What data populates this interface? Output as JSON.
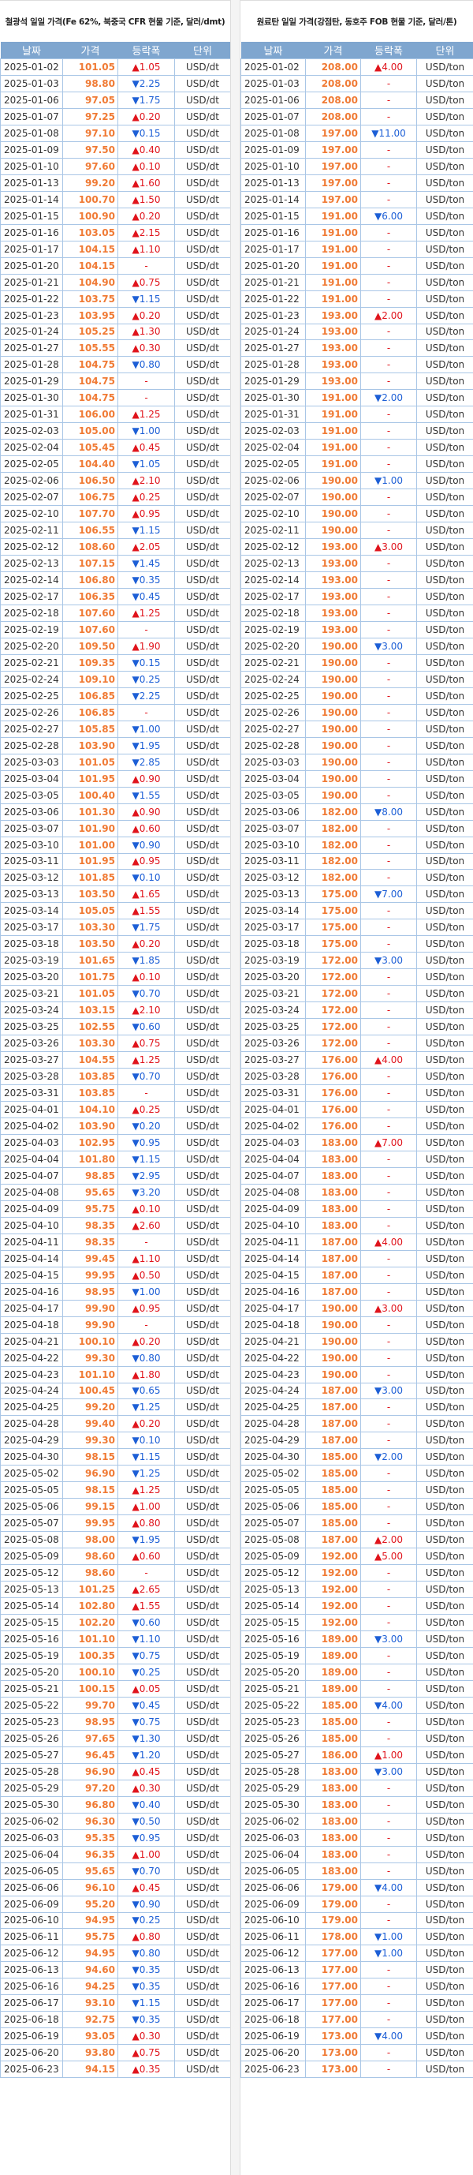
{
  "iron_ore": {
    "title": "철광석 일일 가격(Fe 62%, 북중국 CFR 현물 기준, 달러/dmt)",
    "headers": [
      "날짜",
      "가격",
      "등락폭",
      "단위"
    ],
    "unit": "USD/dt",
    "rows": [
      [
        "2025-01-02",
        "101.05",
        "▲1.05"
      ],
      [
        "2025-01-03",
        "98.80",
        "▼2.25"
      ],
      [
        "2025-01-06",
        "97.05",
        "▼1.75"
      ],
      [
        "2025-01-07",
        "97.25",
        "▲0.20"
      ],
      [
        "2025-01-08",
        "97.10",
        "▼0.15"
      ],
      [
        "2025-01-09",
        "97.50",
        "▲0.40"
      ],
      [
        "2025-01-10",
        "97.60",
        "▲0.10"
      ],
      [
        "2025-01-13",
        "99.20",
        "▲1.60"
      ],
      [
        "2025-01-14",
        "100.70",
        "▲1.50"
      ],
      [
        "2025-01-15",
        "100.90",
        "▲0.20"
      ],
      [
        "2025-01-16",
        "103.05",
        "▲2.15"
      ],
      [
        "2025-01-17",
        "104.15",
        "▲1.10"
      ],
      [
        "2025-01-20",
        "104.15",
        "-"
      ],
      [
        "2025-01-21",
        "104.90",
        "▲0.75"
      ],
      [
        "2025-01-22",
        "103.75",
        "▼1.15"
      ],
      [
        "2025-01-23",
        "103.95",
        "▲0.20"
      ],
      [
        "2025-01-24",
        "105.25",
        "▲1.30"
      ],
      [
        "2025-01-27",
        "105.55",
        "▲0.30"
      ],
      [
        "2025-01-28",
        "104.75",
        "▼0.80"
      ],
      [
        "2025-01-29",
        "104.75",
        "-"
      ],
      [
        "2025-01-30",
        "104.75",
        "-"
      ],
      [
        "2025-01-31",
        "106.00",
        "▲1.25"
      ],
      [
        "2025-02-03",
        "105.00",
        "▼1.00"
      ],
      [
        "2025-02-04",
        "105.45",
        "▲0.45"
      ],
      [
        "2025-02-05",
        "104.40",
        "▼1.05"
      ],
      [
        "2025-02-06",
        "106.50",
        "▲2.10"
      ],
      [
        "2025-02-07",
        "106.75",
        "▲0.25"
      ],
      [
        "2025-02-10",
        "107.70",
        "▲0.95"
      ],
      [
        "2025-02-11",
        "106.55",
        "▼1.15"
      ],
      [
        "2025-02-12",
        "108.60",
        "▲2.05"
      ],
      [
        "2025-02-13",
        "107.15",
        "▼1.45"
      ],
      [
        "2025-02-14",
        "106.80",
        "▼0.35"
      ],
      [
        "2025-02-17",
        "106.35",
        "▼0.45"
      ],
      [
        "2025-02-18",
        "107.60",
        "▲1.25"
      ],
      [
        "2025-02-19",
        "107.60",
        "-"
      ],
      [
        "2025-02-20",
        "109.50",
        "▲1.90"
      ],
      [
        "2025-02-21",
        "109.35",
        "▼0.15"
      ],
      [
        "2025-02-24",
        "109.10",
        "▼0.25"
      ],
      [
        "2025-02-25",
        "106.85",
        "▼2.25"
      ],
      [
        "2025-02-26",
        "106.85",
        "-"
      ],
      [
        "2025-02-27",
        "105.85",
        "▼1.00"
      ],
      [
        "2025-02-28",
        "103.90",
        "▼1.95"
      ],
      [
        "2025-03-03",
        "101.05",
        "▼2.85"
      ],
      [
        "2025-03-04",
        "101.95",
        "▲0.90"
      ],
      [
        "2025-03-05",
        "100.40",
        "▼1.55"
      ],
      [
        "2025-03-06",
        "101.30",
        "▲0.90"
      ],
      [
        "2025-03-07",
        "101.90",
        "▲0.60"
      ],
      [
        "2025-03-10",
        "101.00",
        "▼0.90"
      ],
      [
        "2025-03-11",
        "101.95",
        "▲0.95"
      ],
      [
        "2025-03-12",
        "101.85",
        "▼0.10"
      ],
      [
        "2025-03-13",
        "103.50",
        "▲1.65"
      ],
      [
        "2025-03-14",
        "105.05",
        "▲1.55"
      ],
      [
        "2025-03-17",
        "103.30",
        "▼1.75"
      ],
      [
        "2025-03-18",
        "103.50",
        "▲0.20"
      ],
      [
        "2025-03-19",
        "101.65",
        "▼1.85"
      ],
      [
        "2025-03-20",
        "101.75",
        "▲0.10"
      ],
      [
        "2025-03-21",
        "101.05",
        "▼0.70"
      ],
      [
        "2025-03-24",
        "103.15",
        "▲2.10"
      ],
      [
        "2025-03-25",
        "102.55",
        "▼0.60"
      ],
      [
        "2025-03-26",
        "103.30",
        "▲0.75"
      ],
      [
        "2025-03-27",
        "104.55",
        "▲1.25"
      ],
      [
        "2025-03-28",
        "103.85",
        "▼0.70"
      ],
      [
        "2025-03-31",
        "103.85",
        "-"
      ],
      [
        "2025-04-01",
        "104.10",
        "▲0.25"
      ],
      [
        "2025-04-02",
        "103.90",
        "▼0.20"
      ],
      [
        "2025-04-03",
        "102.95",
        "▼0.95"
      ],
      [
        "2025-04-04",
        "101.80",
        "▼1.15"
      ],
      [
        "2025-04-07",
        "98.85",
        "▼2.95"
      ],
      [
        "2025-04-08",
        "95.65",
        "▼3.20"
      ],
      [
        "2025-04-09",
        "95.75",
        "▲0.10"
      ],
      [
        "2025-04-10",
        "98.35",
        "▲2.60"
      ],
      [
        "2025-04-11",
        "98.35",
        "-"
      ],
      [
        "2025-04-14",
        "99.45",
        "▲1.10"
      ],
      [
        "2025-04-15",
        "99.95",
        "▲0.50"
      ],
      [
        "2025-04-16",
        "98.95",
        "▼1.00"
      ],
      [
        "2025-04-17",
        "99.90",
        "▲0.95"
      ],
      [
        "2025-04-18",
        "99.90",
        "-"
      ],
      [
        "2025-04-21",
        "100.10",
        "▲0.20"
      ],
      [
        "2025-04-22",
        "99.30",
        "▼0.80"
      ],
      [
        "2025-04-23",
        "101.10",
        "▲1.80"
      ],
      [
        "2025-04-24",
        "100.45",
        "▼0.65"
      ],
      [
        "2025-04-25",
        "99.20",
        "▼1.25"
      ],
      [
        "2025-04-28",
        "99.40",
        "▲0.20"
      ],
      [
        "2025-04-29",
        "99.30",
        "▼0.10"
      ],
      [
        "2025-04-30",
        "98.15",
        "▼1.15"
      ],
      [
        "2025-05-02",
        "96.90",
        "▼1.25"
      ],
      [
        "2025-05-05",
        "98.15",
        "▲1.25"
      ],
      [
        "2025-05-06",
        "99.15",
        "▲1.00"
      ],
      [
        "2025-05-07",
        "99.95",
        "▲0.80"
      ],
      [
        "2025-05-08",
        "98.00",
        "▼1.95"
      ],
      [
        "2025-05-09",
        "98.60",
        "▲0.60"
      ],
      [
        "2025-05-12",
        "98.60",
        "-"
      ],
      [
        "2025-05-13",
        "101.25",
        "▲2.65"
      ],
      [
        "2025-05-14",
        "102.80",
        "▲1.55"
      ],
      [
        "2025-05-15",
        "102.20",
        "▼0.60"
      ],
      [
        "2025-05-16",
        "101.10",
        "▼1.10"
      ],
      [
        "2025-05-19",
        "100.35",
        "▼0.75"
      ],
      [
        "2025-05-20",
        "100.10",
        "▼0.25"
      ],
      [
        "2025-05-21",
        "100.15",
        "▲0.05"
      ],
      [
        "2025-05-22",
        "99.70",
        "▼0.45"
      ],
      [
        "2025-05-23",
        "98.95",
        "▼0.75"
      ],
      [
        "2025-05-26",
        "97.65",
        "▼1.30"
      ],
      [
        "2025-05-27",
        "96.45",
        "▼1.20"
      ],
      [
        "2025-05-28",
        "96.90",
        "▲0.45"
      ],
      [
        "2025-05-29",
        "97.20",
        "▲0.30"
      ],
      [
        "2025-05-30",
        "96.80",
        "▼0.40"
      ],
      [
        "2025-06-02",
        "96.30",
        "▼0.50"
      ],
      [
        "2025-06-03",
        "95.35",
        "▼0.95"
      ],
      [
        "2025-06-04",
        "96.35",
        "▲1.00"
      ],
      [
        "2025-06-05",
        "95.65",
        "▼0.70"
      ],
      [
        "2025-06-06",
        "96.10",
        "▲0.45"
      ],
      [
        "2025-06-09",
        "95.20",
        "▼0.90"
      ],
      [
        "2025-06-10",
        "94.95",
        "▼0.25"
      ],
      [
        "2025-06-11",
        "95.75",
        "▲0.80"
      ],
      [
        "2025-06-12",
        "94.95",
        "▼0.80"
      ],
      [
        "2025-06-13",
        "94.60",
        "▼0.35"
      ],
      [
        "2025-06-16",
        "94.25",
        "▼0.35"
      ],
      [
        "2025-06-17",
        "93.10",
        "▼1.15"
      ],
      [
        "2025-06-18",
        "92.75",
        "▼0.35"
      ],
      [
        "2025-06-19",
        "93.05",
        "▲0.30"
      ],
      [
        "2025-06-20",
        "93.80",
        "▲0.75"
      ],
      [
        "2025-06-23",
        "94.15",
        "▲0.35"
      ]
    ]
  },
  "coking_coal": {
    "title": "원료탄 일일 가격(강점탄, 동호주 FOB 현물 기준, 달러/톤)",
    "headers": [
      "날짜",
      "가격",
      "등락폭",
      "단위"
    ],
    "unit": "USD/ton",
    "rows": [
      [
        "2025-01-02",
        "208.00",
        "▲4.00"
      ],
      [
        "2025-01-03",
        "208.00",
        "-"
      ],
      [
        "2025-01-06",
        "208.00",
        "-"
      ],
      [
        "2025-01-07",
        "208.00",
        "-"
      ],
      [
        "2025-01-08",
        "197.00",
        "▼11.00"
      ],
      [
        "2025-01-09",
        "197.00",
        "-"
      ],
      [
        "2025-01-10",
        "197.00",
        "-"
      ],
      [
        "2025-01-13",
        "197.00",
        "-"
      ],
      [
        "2025-01-14",
        "197.00",
        "-"
      ],
      [
        "2025-01-15",
        "191.00",
        "▼6.00"
      ],
      [
        "2025-01-16",
        "191.00",
        "-"
      ],
      [
        "2025-01-17",
        "191.00",
        "-"
      ],
      [
        "2025-01-20",
        "191.00",
        "-"
      ],
      [
        "2025-01-21",
        "191.00",
        "-"
      ],
      [
        "2025-01-22",
        "191.00",
        "-"
      ],
      [
        "2025-01-23",
        "193.00",
        "▲2.00"
      ],
      [
        "2025-01-24",
        "193.00",
        "-"
      ],
      [
        "2025-01-27",
        "193.00",
        "-"
      ],
      [
        "2025-01-28",
        "193.00",
        "-"
      ],
      [
        "2025-01-29",
        "193.00",
        "-"
      ],
      [
        "2025-01-30",
        "191.00",
        "▼2.00"
      ],
      [
        "2025-01-31",
        "191.00",
        "-"
      ],
      [
        "2025-02-03",
        "191.00",
        "-"
      ],
      [
        "2025-02-04",
        "191.00",
        "-"
      ],
      [
        "2025-02-05",
        "191.00",
        "-"
      ],
      [
        "2025-02-06",
        "190.00",
        "▼1.00"
      ],
      [
        "2025-02-07",
        "190.00",
        "-"
      ],
      [
        "2025-02-10",
        "190.00",
        "-"
      ],
      [
        "2025-02-11",
        "190.00",
        "-"
      ],
      [
        "2025-02-12",
        "193.00",
        "▲3.00"
      ],
      [
        "2025-02-13",
        "193.00",
        "-"
      ],
      [
        "2025-02-14",
        "193.00",
        "-"
      ],
      [
        "2025-02-17",
        "193.00",
        "-"
      ],
      [
        "2025-02-18",
        "193.00",
        "-"
      ],
      [
        "2025-02-19",
        "193.00",
        "-"
      ],
      [
        "2025-02-20",
        "190.00",
        "▼3.00"
      ],
      [
        "2025-02-21",
        "190.00",
        "-"
      ],
      [
        "2025-02-24",
        "190.00",
        "-"
      ],
      [
        "2025-02-25",
        "190.00",
        "-"
      ],
      [
        "2025-02-26",
        "190.00",
        "-"
      ],
      [
        "2025-02-27",
        "190.00",
        "-"
      ],
      [
        "2025-02-28",
        "190.00",
        "-"
      ],
      [
        "2025-03-03",
        "190.00",
        "-"
      ],
      [
        "2025-03-04",
        "190.00",
        "-"
      ],
      [
        "2025-03-05",
        "190.00",
        "-"
      ],
      [
        "2025-03-06",
        "182.00",
        "▼8.00"
      ],
      [
        "2025-03-07",
        "182.00",
        "-"
      ],
      [
        "2025-03-10",
        "182.00",
        "-"
      ],
      [
        "2025-03-11",
        "182.00",
        "-"
      ],
      [
        "2025-03-12",
        "182.00",
        "-"
      ],
      [
        "2025-03-13",
        "175.00",
        "▼7.00"
      ],
      [
        "2025-03-14",
        "175.00",
        "-"
      ],
      [
        "2025-03-17",
        "175.00",
        "-"
      ],
      [
        "2025-03-18",
        "175.00",
        "-"
      ],
      [
        "2025-03-19",
        "172.00",
        "▼3.00"
      ],
      [
        "2025-03-20",
        "172.00",
        "-"
      ],
      [
        "2025-03-21",
        "172.00",
        "-"
      ],
      [
        "2025-03-24",
        "172.00",
        "-"
      ],
      [
        "2025-03-25",
        "172.00",
        "-"
      ],
      [
        "2025-03-26",
        "172.00",
        "-"
      ],
      [
        "2025-03-27",
        "176.00",
        "▲4.00"
      ],
      [
        "2025-03-28",
        "176.00",
        "-"
      ],
      [
        "2025-03-31",
        "176.00",
        "-"
      ],
      [
        "2025-04-01",
        "176.00",
        "-"
      ],
      [
        "2025-04-02",
        "176.00",
        "-"
      ],
      [
        "2025-04-03",
        "183.00",
        "▲7.00"
      ],
      [
        "2025-04-04",
        "183.00",
        "-"
      ],
      [
        "2025-04-07",
        "183.00",
        "-"
      ],
      [
        "2025-04-08",
        "183.00",
        "-"
      ],
      [
        "2025-04-09",
        "183.00",
        "-"
      ],
      [
        "2025-04-10",
        "183.00",
        "-"
      ],
      [
        "2025-04-11",
        "187.00",
        "▲4.00"
      ],
      [
        "2025-04-14",
        "187.00",
        "-"
      ],
      [
        "2025-04-15",
        "187.00",
        "-"
      ],
      [
        "2025-04-16",
        "187.00",
        "-"
      ],
      [
        "2025-04-17",
        "190.00",
        "▲3.00"
      ],
      [
        "2025-04-18",
        "190.00",
        "-"
      ],
      [
        "2025-04-21",
        "190.00",
        "-"
      ],
      [
        "2025-04-22",
        "190.00",
        "-"
      ],
      [
        "2025-04-23",
        "190.00",
        "-"
      ],
      [
        "2025-04-24",
        "187.00",
        "▼3.00"
      ],
      [
        "2025-04-25",
        "187.00",
        "-"
      ],
      [
        "2025-04-28",
        "187.00",
        "-"
      ],
      [
        "2025-04-29",
        "187.00",
        "-"
      ],
      [
        "2025-04-30",
        "185.00",
        "▼2.00"
      ],
      [
        "2025-05-02",
        "185.00",
        "-"
      ],
      [
        "2025-05-05",
        "185.00",
        "-"
      ],
      [
        "2025-05-06",
        "185.00",
        "-"
      ],
      [
        "2025-05-07",
        "185.00",
        "-"
      ],
      [
        "2025-05-08",
        "187.00",
        "▲2.00"
      ],
      [
        "2025-05-09",
        "192.00",
        "▲5.00"
      ],
      [
        "2025-05-12",
        "192.00",
        "-"
      ],
      [
        "2025-05-13",
        "192.00",
        "-"
      ],
      [
        "2025-05-14",
        "192.00",
        "-"
      ],
      [
        "2025-05-15",
        "192.00",
        "-"
      ],
      [
        "2025-05-16",
        "189.00",
        "▼3.00"
      ],
      [
        "2025-05-19",
        "189.00",
        "-"
      ],
      [
        "2025-05-20",
        "189.00",
        "-"
      ],
      [
        "2025-05-21",
        "189.00",
        "-"
      ],
      [
        "2025-05-22",
        "185.00",
        "▼4.00"
      ],
      [
        "2025-05-23",
        "185.00",
        "-"
      ],
      [
        "2025-05-26",
        "185.00",
        "-"
      ],
      [
        "2025-05-27",
        "186.00",
        "▲1.00"
      ],
      [
        "2025-05-28",
        "183.00",
        "▼3.00"
      ],
      [
        "2025-05-29",
        "183.00",
        "-"
      ],
      [
        "2025-05-30",
        "183.00",
        "-"
      ],
      [
        "2025-06-02",
        "183.00",
        "-"
      ],
      [
        "2025-06-03",
        "183.00",
        "-"
      ],
      [
        "2025-06-04",
        "183.00",
        "-"
      ],
      [
        "2025-06-05",
        "183.00",
        "-"
      ],
      [
        "2025-06-06",
        "179.00",
        "▼4.00"
      ],
      [
        "2025-06-09",
        "179.00",
        "-"
      ],
      [
        "2025-06-10",
        "179.00",
        "-"
      ],
      [
        "2025-06-11",
        "178.00",
        "▼1.00"
      ],
      [
        "2025-06-12",
        "177.00",
        "▼1.00"
      ],
      [
        "2025-06-13",
        "177.00",
        "-"
      ],
      [
        "2025-06-16",
        "177.00",
        "-"
      ],
      [
        "2025-06-17",
        "177.00",
        "-"
      ],
      [
        "2025-06-18",
        "177.00",
        "-"
      ],
      [
        "2025-06-19",
        "173.00",
        "▼4.00"
      ],
      [
        "2025-06-20",
        "173.00",
        "-"
      ],
      [
        "2025-06-23",
        "173.00",
        "-"
      ]
    ]
  },
  "colors": {
    "header_bg": "#7fa6cf",
    "price": "#f07a34",
    "up": "#e0141c",
    "down": "#1d5fd6",
    "border": "#a9c6e6"
  }
}
